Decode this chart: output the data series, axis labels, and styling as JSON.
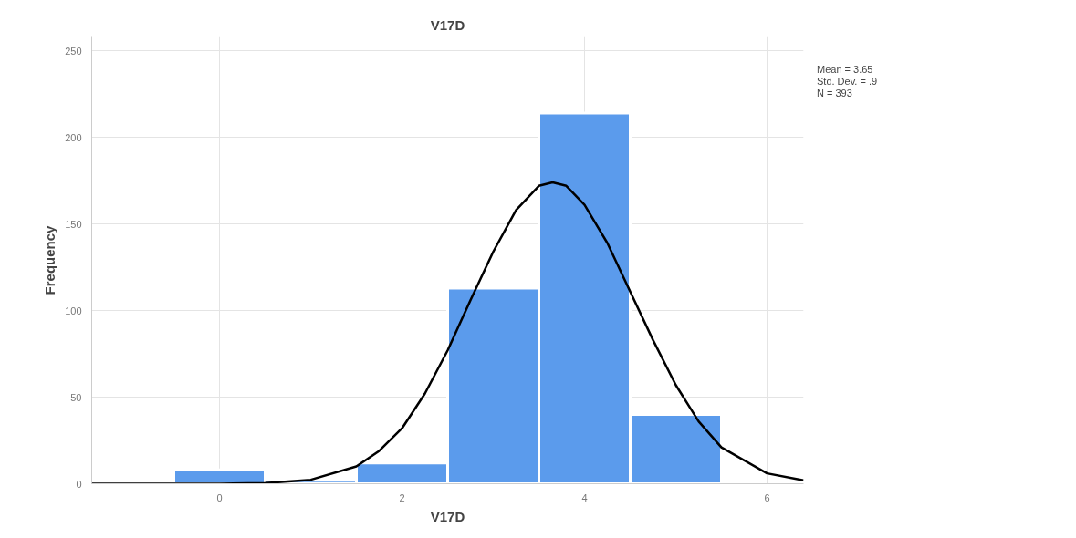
{
  "chart_data": {
    "type": "histogram",
    "title": "V17D",
    "xlabel": "V17D",
    "ylabel": "Frequency",
    "bins": [
      -0.5,
      0.5,
      1.5,
      2.5,
      3.5,
      4.5,
      5.5
    ],
    "values": [
      8,
      2,
      12,
      113,
      214,
      40
    ],
    "color": "#5b9bec",
    "series": [
      {
        "type": "line",
        "color": "#000000",
        "x": [
          -1.4,
          -0.5,
          0.0,
          0.5,
          1.0,
          1.5,
          1.75,
          2.0,
          2.25,
          2.5,
          2.75,
          3.0,
          3.25,
          3.5,
          3.65,
          3.8,
          4.0,
          4.25,
          4.5,
          4.75,
          5.0,
          5.25,
          5.5,
          6.0,
          6.4
        ],
        "values": [
          0,
          0,
          0,
          0.4,
          2.3,
          10,
          19,
          32,
          52,
          77,
          106,
          134,
          158,
          172,
          174,
          172,
          161,
          139,
          111,
          83,
          57,
          36,
          21,
          6,
          2
        ]
      }
    ],
    "xlim": [
      -1.4,
      6.4
    ],
    "ylim": [
      0,
      258
    ],
    "xticks": [
      0,
      2,
      4,
      6
    ],
    "yticks": [
      0,
      50,
      100,
      150,
      200,
      250
    ],
    "grid": true,
    "annotations": [
      "Mean = 3.65",
      "Std. Dev. = .9",
      "N = 393"
    ]
  }
}
